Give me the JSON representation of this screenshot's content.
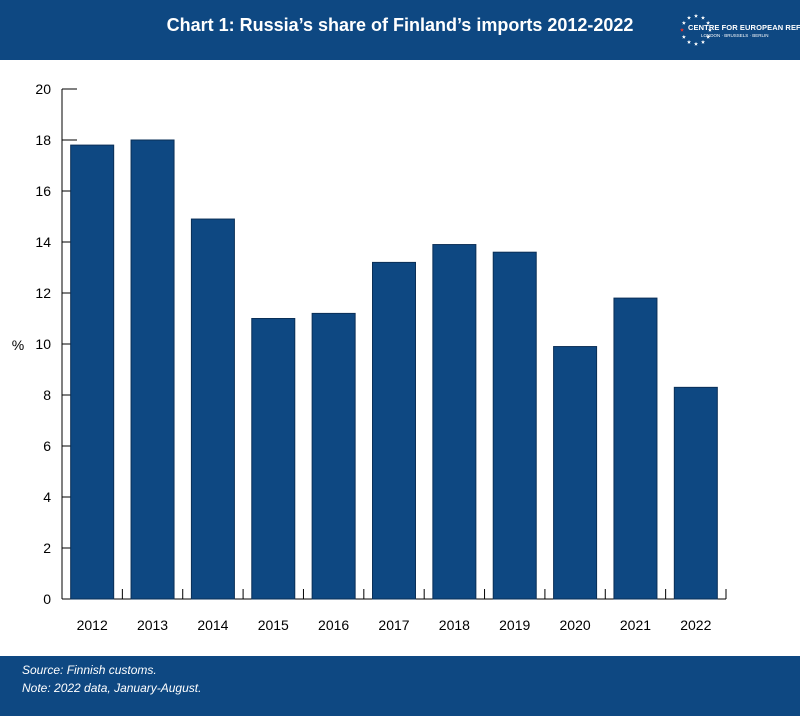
{
  "header": {
    "title": "Chart 1: Russia’s share of Finland’s imports 2012-2022",
    "logo_name": "CENTRE FOR EUROPEAN REFORM",
    "logo_cities": "LONDON · BRUSSELS · BERLIN"
  },
  "footer": {
    "source": "Source:  Finnish customs.",
    "note": "Note: 2022 data, January-August."
  },
  "colors": {
    "brand": "#0e4882",
    "bar": "#0e4882"
  },
  "chart_data": {
    "type": "bar",
    "title": "Chart 1: Russia’s share of Finland’s imports 2012-2022",
    "xlabel": "",
    "ylabel": "%",
    "categories": [
      "2012",
      "2013",
      "2014",
      "2015",
      "2016",
      "2017",
      "2018",
      "2019",
      "2020",
      "2021",
      "2022"
    ],
    "values": [
      17.8,
      18.0,
      14.9,
      11.0,
      11.2,
      13.2,
      13.9,
      13.6,
      9.9,
      11.8,
      8.3
    ],
    "ylim": [
      0,
      20
    ],
    "yticks": [
      "0",
      "2",
      "4",
      "6",
      "8",
      "10",
      "12",
      "14",
      "16",
      "18",
      "20"
    ],
    "grid": false,
    "legend": "none"
  }
}
